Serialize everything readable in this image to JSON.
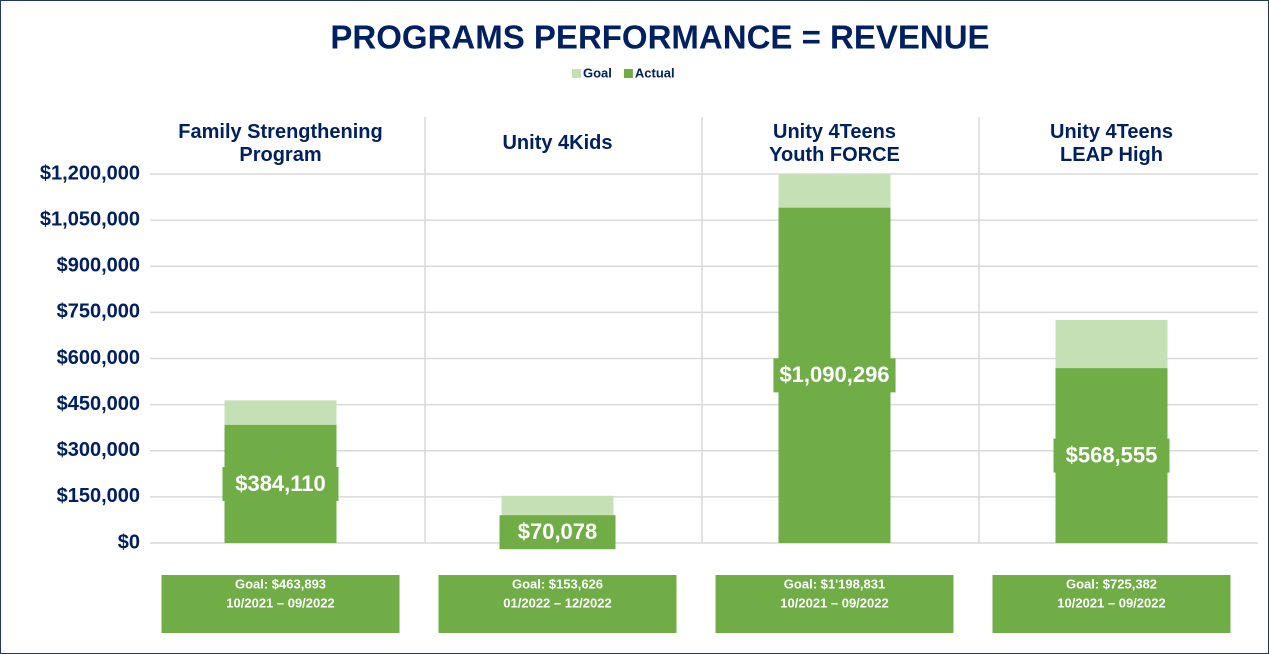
{
  "chart_data": {
    "type": "overlap-bar",
    "title": "PROGRAMS PERFORMANCE = REVENUE",
    "categories": [
      [
        "Family Strengthening",
        "Program"
      ],
      [
        "Unity 4Kids"
      ],
      [
        "Unity 4Teens",
        "Youth FORCE"
      ],
      [
        "Unity 4Teens",
        "LEAP High"
      ]
    ],
    "series": [
      {
        "name": "Goal",
        "color": "#c5e0b4",
        "values": [
          463893,
          153626,
          1198831,
          725382
        ],
        "value_labels": [
          "Goal: $463,893",
          "Goal: $153,626",
          "Goal: $1'198,831",
          "Goal: $725,382"
        ]
      },
      {
        "name": "Actual",
        "color": "#70ad47",
        "values": [
          384110,
          70078,
          1090296,
          568555
        ],
        "value_labels": [
          "$384,110",
          "$70,078",
          "$1,090,296",
          "$568,555"
        ]
      }
    ],
    "periods": [
      "10/2021 – 09/2022",
      "01/2022 – 12/2022",
      "10/2021 – 09/2022",
      "10/2021 – 09/2022"
    ],
    "ylim": [
      0,
      1200000
    ],
    "yticks": [
      {
        "value": 0,
        "label": "$0"
      },
      {
        "value": 150000,
        "label": "$150,000"
      },
      {
        "value": 300000,
        "label": "$300,000"
      },
      {
        "value": 450000,
        "label": "$450,000"
      },
      {
        "value": 600000,
        "label": "$600,000"
      },
      {
        "value": 750000,
        "label": "$750,000"
      },
      {
        "value": 900000,
        "label": "$900,000"
      },
      {
        "value": 1050000,
        "label": "$1,050,000"
      },
      {
        "value": 1200000,
        "label": "$1,200,000"
      }
    ],
    "grid": true,
    "legend": "top"
  }
}
